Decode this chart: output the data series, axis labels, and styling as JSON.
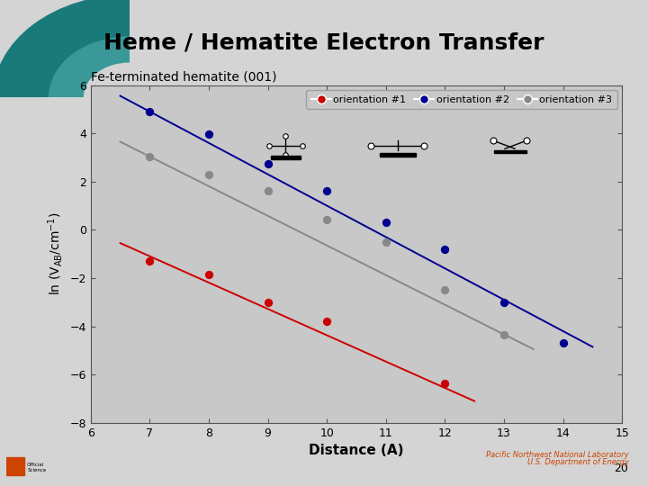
{
  "title": "Heme / Hematite Electron Transfer",
  "subtitle": "Fe-terminated hematite (001)",
  "xlabel": "Distance (A)",
  "ylabel": "ln (V_{AB}/cm^{-1})",
  "xlim": [
    6,
    15
  ],
  "ylim": [
    -8,
    6
  ],
  "xticks": [
    6,
    7,
    8,
    9,
    10,
    11,
    12,
    13,
    14,
    15
  ],
  "yticks": [
    -8,
    -6,
    -4,
    -2,
    0,
    2,
    4,
    6
  ],
  "bg_color": "#d4d4d4",
  "plot_bg_color": "#c8c8c8",
  "teal_outer": "#1a7a7a",
  "teal_inner": "#3a9898",
  "series": [
    {
      "label": "orientation #1",
      "color": "#cc0000",
      "x": [
        7,
        8,
        9,
        10,
        12
      ],
      "y": [
        -1.3,
        -1.85,
        -3.0,
        -3.8,
        -6.35
      ],
      "fit_x": [
        6.5,
        12.5
      ],
      "fit_y": [
        -0.55,
        -7.1
      ]
    },
    {
      "label": "orientation #2",
      "color": "#000090",
      "x": [
        7,
        8,
        9,
        10,
        11,
        12,
        13,
        14
      ],
      "y": [
        4.9,
        3.95,
        2.75,
        1.6,
        0.32,
        -0.8,
        -3.0,
        -4.7
      ],
      "fit_x": [
        6.5,
        14.5
      ],
      "fit_y": [
        5.55,
        -4.85
      ]
    },
    {
      "label": "orientation #3",
      "color": "#888888",
      "x": [
        7,
        8,
        9,
        10,
        11,
        12,
        13
      ],
      "y": [
        3.02,
        2.28,
        1.62,
        0.42,
        -0.5,
        -2.5,
        -4.35
      ],
      "fit_x": [
        6.5,
        13.5
      ],
      "fit_y": [
        3.65,
        -4.95
      ]
    }
  ],
  "footer_right": "Pacific Northwest National Laboratory",
  "footer_right2": "U.S. Department of Energy",
  "page_num": "20"
}
